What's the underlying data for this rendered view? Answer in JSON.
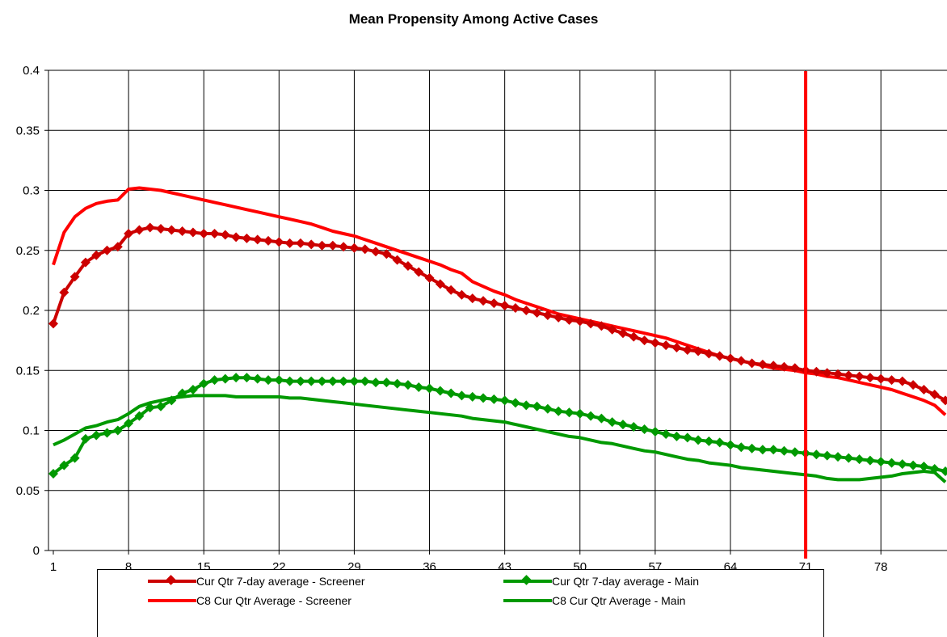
{
  "chart_data": {
    "type": "line",
    "title": "Mean Propensity Among Active Cases",
    "xlabel": "",
    "ylabel": "",
    "x_range": [
      1,
      84
    ],
    "ylim": [
      0,
      0.4
    ],
    "y_ticks": [
      "0",
      "0.05",
      "0.1",
      "0.15",
      "0.2",
      "0.25",
      "0.3",
      "0.35",
      "0.4"
    ],
    "y_tick_values": [
      0,
      0.05,
      0.1,
      0.15,
      0.2,
      0.25,
      0.3,
      0.35,
      0.4
    ],
    "x_ticks": [
      "1",
      "8",
      "15",
      "22",
      "29",
      "36",
      "43",
      "50",
      "57",
      "64",
      "71",
      "78"
    ],
    "x_tick_values": [
      1,
      8,
      15,
      22,
      29,
      36,
      43,
      50,
      57,
      64,
      71,
      78
    ],
    "grid": true,
    "legend_position": "bottom",
    "reference_line": {
      "x": 71,
      "color": "#FF0000"
    },
    "series": [
      {
        "name": "Cur Qtr 7-day average - Screener",
        "color": "#CC0000",
        "marker": "diamond",
        "x": [
          1,
          2,
          3,
          4,
          5,
          6,
          7,
          8,
          9,
          10,
          11,
          12,
          13,
          14,
          15,
          16,
          17,
          18,
          19,
          20,
          21,
          22,
          23,
          24,
          25,
          26,
          27,
          28,
          29,
          30,
          31,
          32,
          33,
          34,
          35,
          36,
          37,
          38,
          39,
          40,
          41,
          42,
          43,
          44,
          45,
          46,
          47,
          48,
          49,
          50,
          51,
          52,
          53,
          54,
          55,
          56,
          57,
          58,
          59,
          60,
          61,
          62,
          63,
          64,
          65,
          66,
          67,
          68,
          69,
          70,
          71,
          72,
          73,
          74,
          75,
          76,
          77,
          78,
          79,
          80,
          81,
          82,
          83,
          84
        ],
        "values": [
          0.189,
          0.215,
          0.228,
          0.24,
          0.246,
          0.25,
          0.253,
          0.264,
          0.267,
          0.269,
          0.268,
          0.267,
          0.266,
          0.265,
          0.264,
          0.264,
          0.263,
          0.261,
          0.26,
          0.259,
          0.258,
          0.257,
          0.256,
          0.256,
          0.255,
          0.254,
          0.254,
          0.253,
          0.252,
          0.251,
          0.249,
          0.247,
          0.242,
          0.237,
          0.232,
          0.227,
          0.222,
          0.217,
          0.213,
          0.21,
          0.208,
          0.206,
          0.204,
          0.202,
          0.2,
          0.198,
          0.196,
          0.194,
          0.192,
          0.191,
          0.189,
          0.187,
          0.184,
          0.181,
          0.178,
          0.175,
          0.173,
          0.171,
          0.169,
          0.167,
          0.166,
          0.164,
          0.162,
          0.16,
          0.158,
          0.156,
          0.155,
          0.154,
          0.153,
          0.152,
          0.15,
          0.149,
          0.148,
          0.147,
          0.146,
          0.145,
          0.144,
          0.143,
          0.142,
          0.141,
          0.138,
          0.134,
          0.13,
          0.125
        ]
      },
      {
        "name": "C8 Cur Qtr Average - Screener",
        "color": "#FF0000",
        "marker": "none",
        "x": [
          1,
          2,
          3,
          4,
          5,
          6,
          7,
          8,
          9,
          10,
          11,
          12,
          13,
          14,
          15,
          16,
          17,
          18,
          19,
          20,
          21,
          22,
          23,
          24,
          25,
          26,
          27,
          28,
          29,
          30,
          31,
          32,
          33,
          34,
          35,
          36,
          37,
          38,
          39,
          40,
          41,
          42,
          43,
          44,
          45,
          46,
          47,
          48,
          49,
          50,
          51,
          52,
          53,
          54,
          55,
          56,
          57,
          58,
          59,
          60,
          61,
          62,
          63,
          64,
          65,
          66,
          67,
          68,
          69,
          70,
          71,
          72,
          73,
          74,
          75,
          76,
          77,
          78,
          79,
          80,
          81,
          82,
          83,
          84
        ],
        "values": [
          0.238,
          0.265,
          0.278,
          0.285,
          0.289,
          0.291,
          0.292,
          0.301,
          0.302,
          0.301,
          0.3,
          0.298,
          0.296,
          0.294,
          0.292,
          0.29,
          0.288,
          0.286,
          0.284,
          0.282,
          0.28,
          0.278,
          0.276,
          0.274,
          0.272,
          0.269,
          0.266,
          0.264,
          0.262,
          0.259,
          0.256,
          0.253,
          0.25,
          0.247,
          0.244,
          0.241,
          0.238,
          0.234,
          0.231,
          0.224,
          0.22,
          0.216,
          0.213,
          0.209,
          0.206,
          0.203,
          0.2,
          0.197,
          0.195,
          0.193,
          0.191,
          0.189,
          0.187,
          0.185,
          0.183,
          0.181,
          0.179,
          0.177,
          0.174,
          0.171,
          0.168,
          0.165,
          0.162,
          0.16,
          0.158,
          0.156,
          0.154,
          0.152,
          0.151,
          0.15,
          0.148,
          0.147,
          0.145,
          0.144,
          0.142,
          0.14,
          0.138,
          0.136,
          0.134,
          0.131,
          0.128,
          0.125,
          0.121,
          0.113
        ]
      },
      {
        "name": "Cur Qtr 7-day average - Main",
        "color": "#009900",
        "marker": "diamond",
        "x": [
          1,
          2,
          3,
          4,
          5,
          6,
          7,
          8,
          9,
          10,
          11,
          12,
          13,
          14,
          15,
          16,
          17,
          18,
          19,
          20,
          21,
          22,
          23,
          24,
          25,
          26,
          27,
          28,
          29,
          30,
          31,
          32,
          33,
          34,
          35,
          36,
          37,
          38,
          39,
          40,
          41,
          42,
          43,
          44,
          45,
          46,
          47,
          48,
          49,
          50,
          51,
          52,
          53,
          54,
          55,
          56,
          57,
          58,
          59,
          60,
          61,
          62,
          63,
          64,
          65,
          66,
          67,
          68,
          69,
          70,
          71,
          72,
          73,
          74,
          75,
          76,
          77,
          78,
          79,
          80,
          81,
          82,
          83,
          84
        ],
        "values": [
          0.064,
          0.071,
          0.077,
          0.093,
          0.096,
          0.098,
          0.1,
          0.106,
          0.112,
          0.119,
          0.12,
          0.125,
          0.131,
          0.134,
          0.139,
          0.142,
          0.143,
          0.144,
          0.144,
          0.143,
          0.142,
          0.142,
          0.141,
          0.141,
          0.141,
          0.141,
          0.141,
          0.141,
          0.141,
          0.141,
          0.14,
          0.14,
          0.139,
          0.138,
          0.136,
          0.135,
          0.133,
          0.131,
          0.129,
          0.128,
          0.127,
          0.126,
          0.125,
          0.123,
          0.121,
          0.12,
          0.118,
          0.116,
          0.115,
          0.114,
          0.112,
          0.11,
          0.107,
          0.105,
          0.103,
          0.101,
          0.099,
          0.097,
          0.095,
          0.094,
          0.092,
          0.091,
          0.09,
          0.088,
          0.086,
          0.085,
          0.084,
          0.084,
          0.083,
          0.082,
          0.081,
          0.08,
          0.079,
          0.078,
          0.077,
          0.076,
          0.075,
          0.074,
          0.073,
          0.072,
          0.071,
          0.07,
          0.068,
          0.066
        ]
      },
      {
        "name": "C8 Cur Qtr Average - Main",
        "color": "#009900",
        "marker": "none",
        "x": [
          1,
          2,
          3,
          4,
          5,
          6,
          7,
          8,
          9,
          10,
          11,
          12,
          13,
          14,
          15,
          16,
          17,
          18,
          19,
          20,
          21,
          22,
          23,
          24,
          25,
          26,
          27,
          28,
          29,
          30,
          31,
          32,
          33,
          34,
          35,
          36,
          37,
          38,
          39,
          40,
          41,
          42,
          43,
          44,
          45,
          46,
          47,
          48,
          49,
          50,
          51,
          52,
          53,
          54,
          55,
          56,
          57,
          58,
          59,
          60,
          61,
          62,
          63,
          64,
          65,
          66,
          67,
          68,
          69,
          70,
          71,
          72,
          73,
          74,
          75,
          76,
          77,
          78,
          79,
          80,
          81,
          82,
          83,
          84
        ],
        "values": [
          0.088,
          0.092,
          0.097,
          0.102,
          0.104,
          0.107,
          0.109,
          0.114,
          0.12,
          0.123,
          0.125,
          0.127,
          0.128,
          0.129,
          0.129,
          0.129,
          0.129,
          0.128,
          0.128,
          0.128,
          0.128,
          0.128,
          0.127,
          0.127,
          0.126,
          0.125,
          0.124,
          0.123,
          0.122,
          0.121,
          0.12,
          0.119,
          0.118,
          0.117,
          0.116,
          0.115,
          0.114,
          0.113,
          0.112,
          0.11,
          0.109,
          0.108,
          0.107,
          0.105,
          0.103,
          0.101,
          0.099,
          0.097,
          0.095,
          0.094,
          0.092,
          0.09,
          0.089,
          0.087,
          0.085,
          0.083,
          0.082,
          0.08,
          0.078,
          0.076,
          0.075,
          0.073,
          0.072,
          0.071,
          0.069,
          0.068,
          0.067,
          0.066,
          0.065,
          0.064,
          0.063,
          0.062,
          0.06,
          0.059,
          0.059,
          0.059,
          0.06,
          0.061,
          0.062,
          0.064,
          0.065,
          0.066,
          0.065,
          0.057
        ]
      }
    ],
    "legend": [
      {
        "series": 0,
        "label": "Cur Qtr 7-day average - Screener"
      },
      {
        "series": 2,
        "label": "Cur Qtr 7-day average - Main"
      },
      {
        "series": 1,
        "label": "C8 Cur Qtr Average - Screener"
      },
      {
        "series": 3,
        "label": "C8 Cur Qtr Average - Main"
      }
    ]
  }
}
